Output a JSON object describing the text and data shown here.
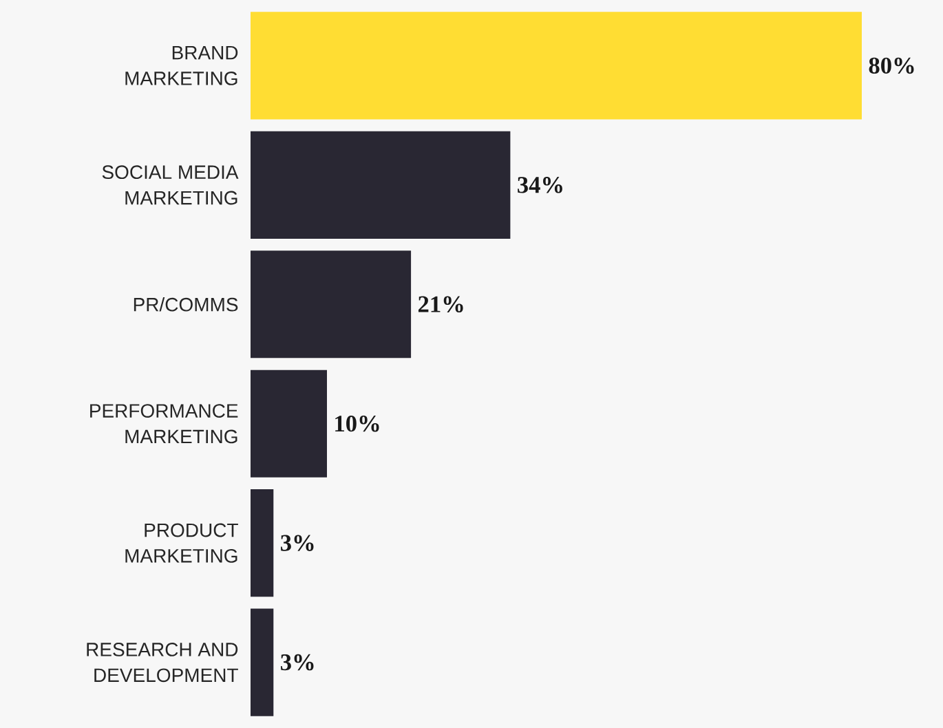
{
  "chart_data": {
    "type": "bar",
    "orientation": "horizontal",
    "categories": [
      "BRAND\nMARKETING",
      "SOCIAL MEDIA\nMARKETING",
      "PR/COMMS",
      "PERFORMANCE\nMARKETING",
      "PRODUCT\nMARKETING",
      "RESEARCH AND\nDEVELOPMENT"
    ],
    "values": [
      80,
      34,
      21,
      10,
      3,
      3
    ],
    "colors": [
      "#ffdd33",
      "#292733",
      "#292733",
      "#292733",
      "#292733",
      "#292733"
    ],
    "value_labels": [
      "80%",
      "34%",
      "21%",
      "10%",
      "3%",
      "3%"
    ]
  }
}
